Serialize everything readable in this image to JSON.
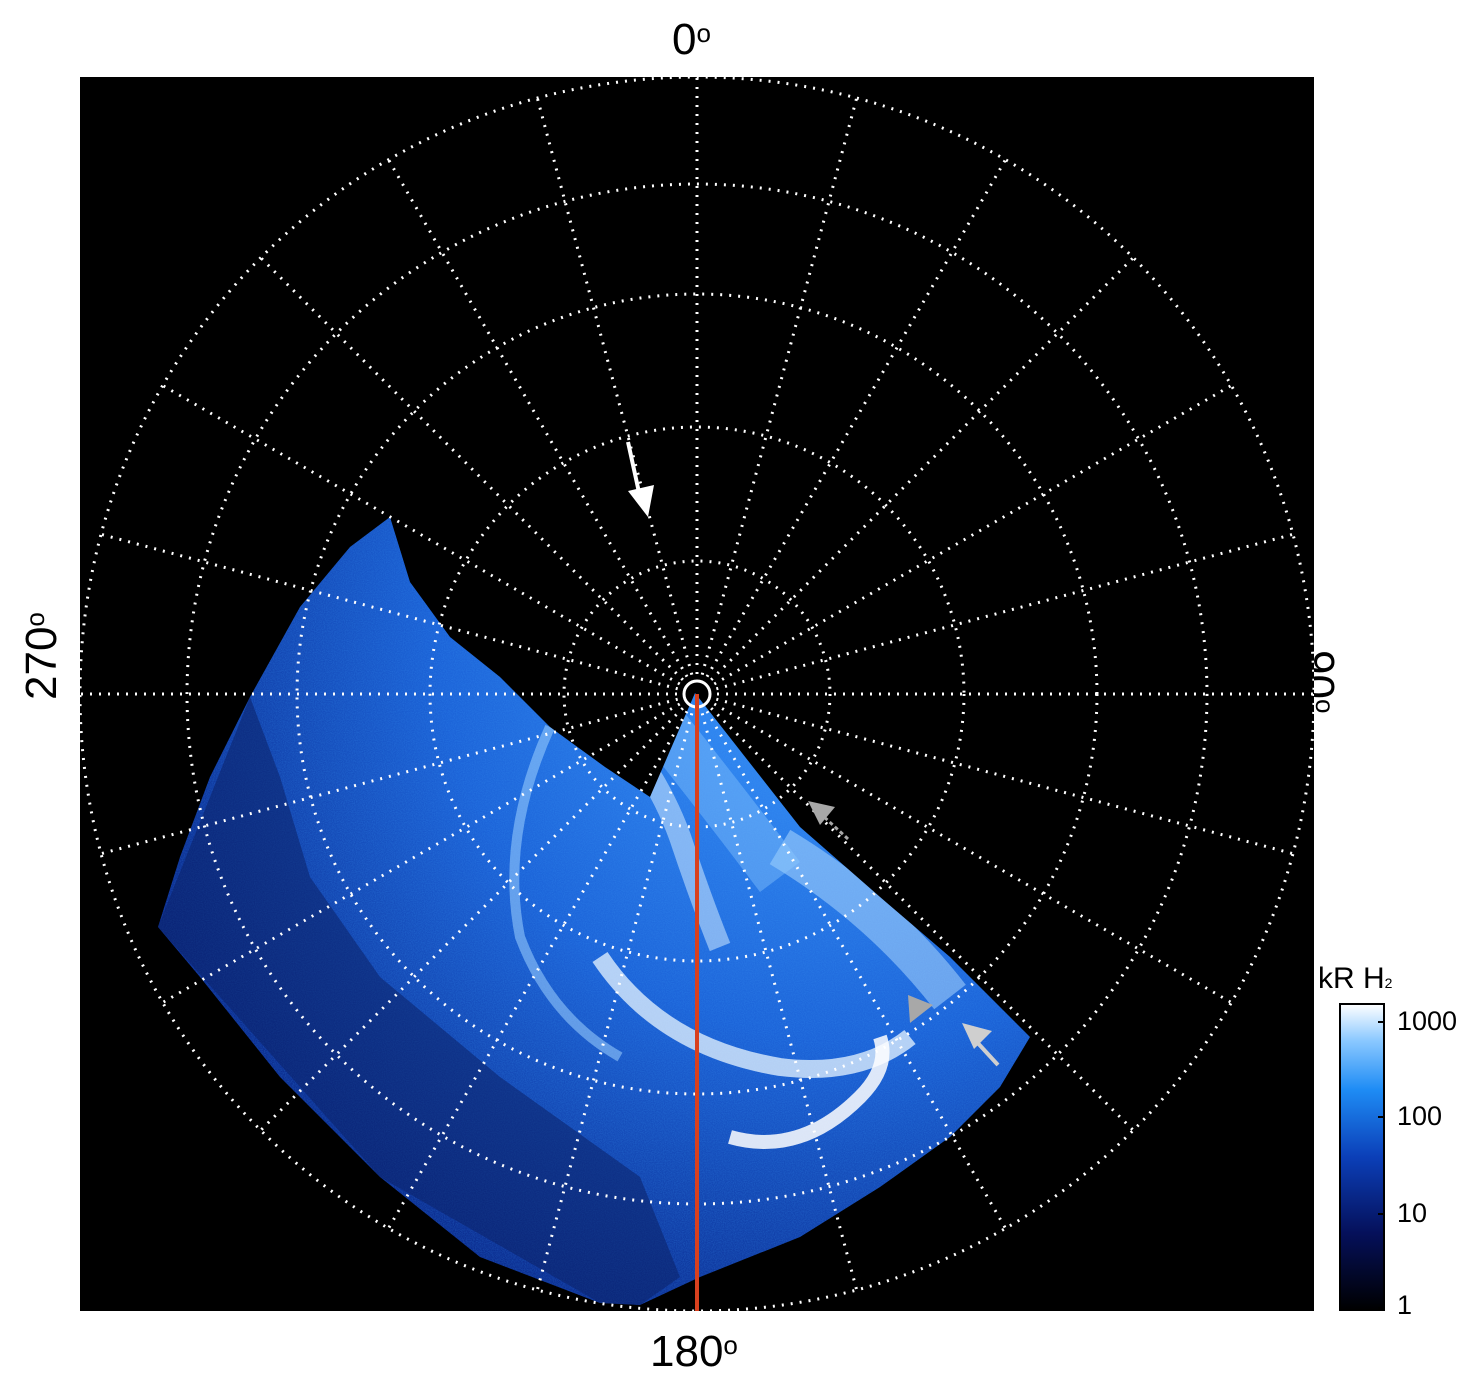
{
  "labels": {
    "top": "0",
    "right": "90",
    "bottom": "180",
    "left": "270",
    "degree_symbol": "o"
  },
  "colorbar": {
    "title_main": "kR H",
    "title_sub": "2",
    "ticks": [
      "1000",
      "100",
      "10",
      "1"
    ]
  },
  "colors": {
    "background": "#000000",
    "grid": "#ffffff",
    "emission_dark": "#0a1a6a",
    "emission_mid": "#1f6fe0",
    "emission_bright": "#eaf6ff",
    "meridian_line": "#d8401e",
    "arrow_white": "#ffffff",
    "arrow_grey": "#a8a8a8"
  }
}
